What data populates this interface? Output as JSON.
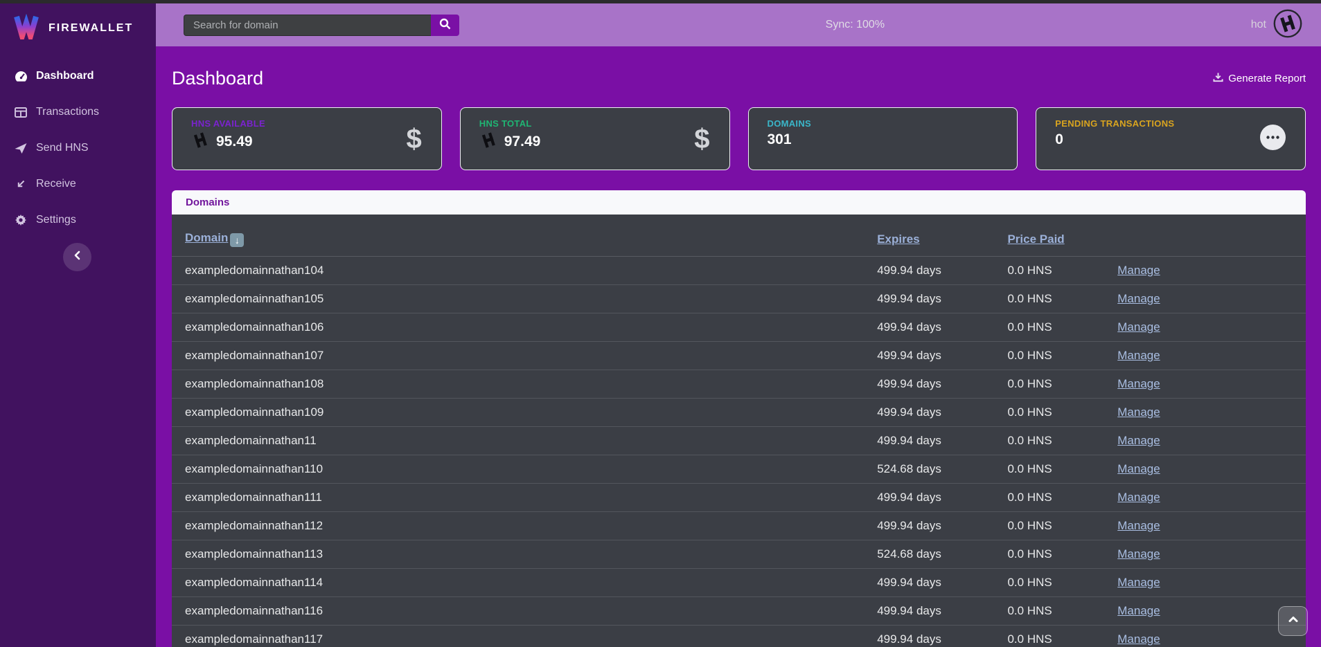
{
  "brand": {
    "name": "FIREWALLET",
    "logo_icon": "firewallet-logo-icon"
  },
  "sidebar": {
    "items": [
      {
        "label": "Dashboard",
        "icon": "gauge-icon",
        "active": true
      },
      {
        "label": "Transactions",
        "icon": "table-icon",
        "active": false
      },
      {
        "label": "Send HNS",
        "icon": "paper-plane-icon",
        "active": false
      },
      {
        "label": "Receive",
        "icon": "arrow-down-left-icon",
        "active": false
      },
      {
        "label": "Settings",
        "icon": "gear-icon",
        "active": false
      }
    ],
    "collapse_icon": "chevron-left-icon"
  },
  "topbar": {
    "search": {
      "placeholder": "Search for domain",
      "value": "",
      "button_icon": "search-icon"
    },
    "sync_status": "Sync: 100%",
    "wallet": {
      "label": "hot",
      "icon": "handshake-logo-icon"
    }
  },
  "page": {
    "title": "Dashboard",
    "generate_report": {
      "label": "Generate Report",
      "icon": "download-icon"
    }
  },
  "stat_cards": [
    {
      "label": "HNS AVAILABLE",
      "value": "95.49",
      "accent": "#7b22cf",
      "value_icon": "hns-icon",
      "right_icon": "dollar-icon"
    },
    {
      "label": "HNS TOTAL",
      "value": "97.49",
      "accent": "#1fb573",
      "value_icon": "hns-icon",
      "right_icon": "dollar-icon"
    },
    {
      "label": "DOMAINS",
      "value": "301",
      "accent": "#3ab6c9",
      "value_icon": null,
      "right_icon": null
    },
    {
      "label": "PENDING TRANSACTIONS",
      "value": "0",
      "accent": "#d9a41f",
      "value_icon": null,
      "right_icon": "ellipsis-icon"
    }
  ],
  "glyphs": {
    "dollar": "$",
    "sort_down": "↓"
  },
  "domains_panel": {
    "title": "Domains",
    "columns": [
      {
        "label": "Domain",
        "sort_icon": "sort-down-icon"
      },
      {
        "label": "Expires"
      },
      {
        "label": "Price Paid"
      }
    ],
    "manage_label": "Manage",
    "rows": [
      {
        "domain": "exampledomainnathan104",
        "expires": "499.94 days",
        "price_paid": "0.0 HNS"
      },
      {
        "domain": "exampledomainnathan105",
        "expires": "499.94 days",
        "price_paid": "0.0 HNS"
      },
      {
        "domain": "exampledomainnathan106",
        "expires": "499.94 days",
        "price_paid": "0.0 HNS"
      },
      {
        "domain": "exampledomainnathan107",
        "expires": "499.94 days",
        "price_paid": "0.0 HNS"
      },
      {
        "domain": "exampledomainnathan108",
        "expires": "499.94 days",
        "price_paid": "0.0 HNS"
      },
      {
        "domain": "exampledomainnathan109",
        "expires": "499.94 days",
        "price_paid": "0.0 HNS"
      },
      {
        "domain": "exampledomainnathan11",
        "expires": "499.94 days",
        "price_paid": "0.0 HNS"
      },
      {
        "domain": "exampledomainnathan110",
        "expires": "524.68 days",
        "price_paid": "0.0 HNS"
      },
      {
        "domain": "exampledomainnathan111",
        "expires": "499.94 days",
        "price_paid": "0.0 HNS"
      },
      {
        "domain": "exampledomainnathan112",
        "expires": "499.94 days",
        "price_paid": "0.0 HNS"
      },
      {
        "domain": "exampledomainnathan113",
        "expires": "524.68 days",
        "price_paid": "0.0 HNS"
      },
      {
        "domain": "exampledomainnathan114",
        "expires": "499.94 days",
        "price_paid": "0.0 HNS"
      },
      {
        "domain": "exampledomainnathan116",
        "expires": "499.94 days",
        "price_paid": "0.0 HNS"
      },
      {
        "domain": "exampledomainnathan117",
        "expires": "499.94 days",
        "price_paid": "0.0 HNS"
      }
    ]
  },
  "colors": {
    "main_bg": "#7a0fa5",
    "sidebar_bg": "#41125f",
    "topbar_bg": "#a873c8",
    "card_bg": "#3b3e45",
    "panel_header_text": "#71159c",
    "table_link": "#9bb0d8"
  }
}
